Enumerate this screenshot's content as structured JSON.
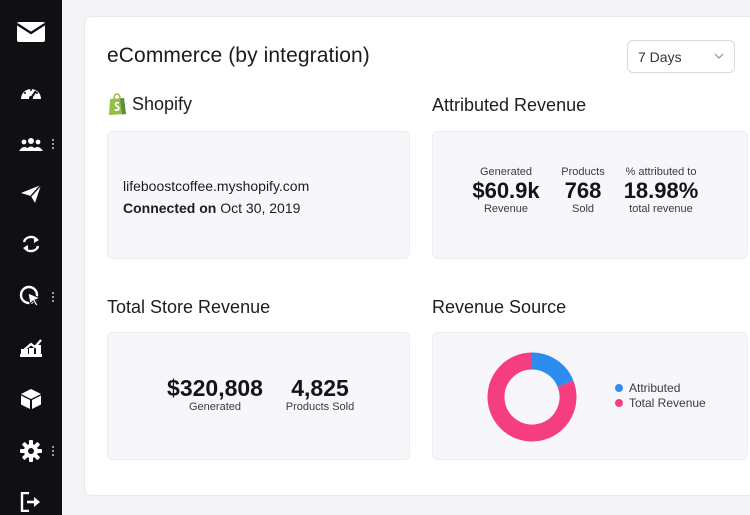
{
  "page": {
    "title": "eCommerce (by integration)"
  },
  "range": {
    "selected": "7 Days"
  },
  "icons": {
    "logo": "envelope-icon",
    "nav": [
      "dashboard-gauge-icon",
      "contacts-group-icon",
      "send-paper-plane-icon",
      "automation-loop-icon",
      "targeting-cursor-icon",
      "reports-chart-icon",
      "integrations-box-icon",
      "settings-gear-icon",
      "logout-icon"
    ]
  },
  "shopify": {
    "title": "Shopify",
    "store_url": "lifeboostcoffee.myshopify.com",
    "connected_label": "Connected on",
    "connected_date": "Oct 30, 2019"
  },
  "attributed": {
    "title": "Attributed Revenue",
    "stats": [
      {
        "top": "Generated",
        "value": "$60.9k",
        "bottom": "Revenue"
      },
      {
        "top": "Products",
        "value": "768",
        "bottom": "Sold"
      },
      {
        "top": "% attributed to",
        "value": "18.98%",
        "bottom": "total revenue"
      }
    ]
  },
  "total_store": {
    "title": "Total Store Revenue",
    "stats": [
      {
        "value": "$320,808",
        "bottom": "Generated"
      },
      {
        "value": "4,825",
        "bottom": "Products Sold"
      }
    ]
  },
  "revenue_source": {
    "title": "Revenue Source",
    "legend": [
      {
        "label": "Attributed",
        "color": "#2d8cf0"
      },
      {
        "label": "Total Revenue",
        "color": "#f53e80"
      }
    ]
  },
  "chart_data": {
    "type": "pie",
    "categories": [
      "Attributed",
      "Total Revenue"
    ],
    "values": [
      18.98,
      81.02
    ],
    "colors": [
      "#2d8cf0",
      "#f53e80"
    ],
    "donut": true,
    "legend": "right"
  }
}
